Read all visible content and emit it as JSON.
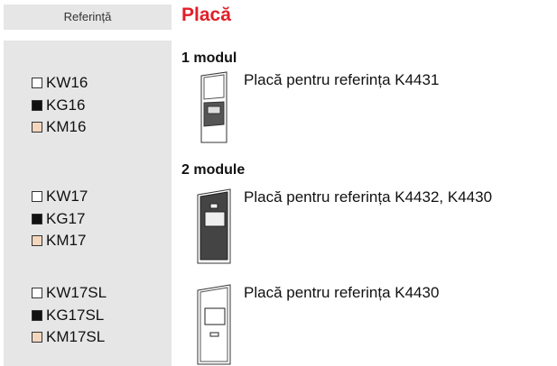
{
  "header": {
    "reference_label": "Referință",
    "title": "Placă"
  },
  "sections": [
    {
      "heading": "1 modul",
      "description": "Placă pentru referința K4431",
      "items": [
        {
          "code": "KW16",
          "color": "#ffffff"
        },
        {
          "code": "KG16",
          "color": "#111111"
        },
        {
          "code": "KM16",
          "color": "#f2d6bd"
        }
      ]
    },
    {
      "heading": "2 module",
      "description": "Placă pentru referința K4432, K4430",
      "items": [
        {
          "code": "KW17",
          "color": "#ffffff"
        },
        {
          "code": "KG17",
          "color": "#111111"
        },
        {
          "code": "KM17",
          "color": "#f2d6bd"
        }
      ]
    },
    {
      "description": "Placă pentru referința K4430",
      "items": [
        {
          "code": "KW17SL",
          "color": "#ffffff"
        },
        {
          "code": "KG17SL",
          "color": "#111111"
        },
        {
          "code": "KM17SL",
          "color": "#f2d6bd"
        }
      ]
    }
  ]
}
